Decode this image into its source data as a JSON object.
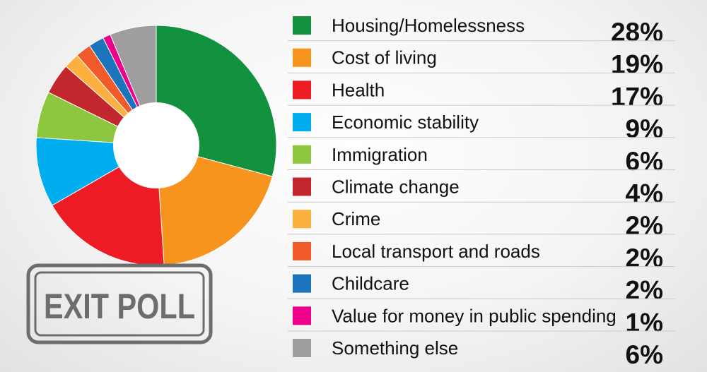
{
  "chart_data": {
    "type": "pie",
    "donut": true,
    "legend_position": "right",
    "unit": "%",
    "categories": [
      "Housing/Homelessness",
      "Cost of living",
      "Health",
      "Economic stability",
      "Immigration",
      "Climate change",
      "Crime",
      "Local transport and roads",
      "Childcare",
      "Value for money in public spending",
      "Something else"
    ],
    "values": [
      28,
      19,
      17,
      9,
      6,
      4,
      2,
      2,
      2,
      1,
      6
    ],
    "value_labels": [
      "28%",
      "19%",
      "17%",
      "9%",
      "6%",
      "4%",
      "2%",
      "2%",
      "2%",
      "1%",
      "6%"
    ],
    "colors": [
      "#12913f",
      "#f7941d",
      "#ed1c24",
      "#00aeef",
      "#8dc63f",
      "#c1272d",
      "#fbb040",
      "#f15a29",
      "#1c75bc",
      "#ec008c",
      "#9e9e9e"
    ]
  },
  "stamp": {
    "text": "EXIT POLL",
    "color": "#6d6d6d"
  }
}
